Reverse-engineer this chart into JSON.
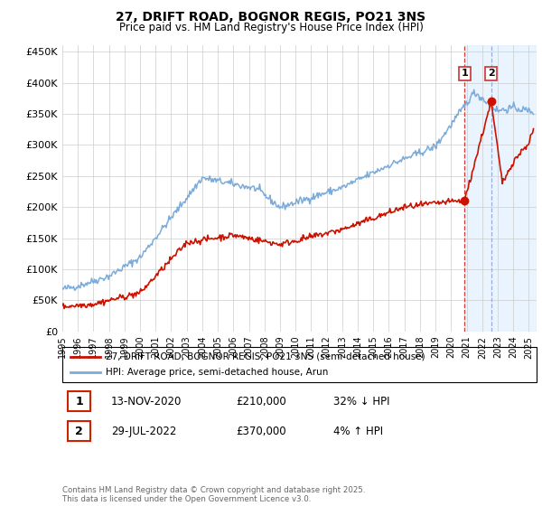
{
  "title": "27, DRIFT ROAD, BOGNOR REGIS, PO21 3NS",
  "subtitle": "Price paid vs. HM Land Registry's House Price Index (HPI)",
  "ylabel_ticks": [
    "£0",
    "£50K",
    "£100K",
    "£150K",
    "£200K",
    "£250K",
    "£300K",
    "£350K",
    "£400K",
    "£450K"
  ],
  "ytick_values": [
    0,
    50000,
    100000,
    150000,
    200000,
    250000,
    300000,
    350000,
    400000,
    450000
  ],
  "ylim": [
    0,
    460000
  ],
  "xlim_start": 1995.0,
  "xlim_end": 2025.5,
  "hpi_color": "#7aabdb",
  "price_color": "#cc1100",
  "marker1_x": 2020.87,
  "marker1_y": 210000,
  "marker2_x": 2022.57,
  "marker2_y": 370000,
  "shade_x1": 2020.87,
  "shade_x2": 2025.5,
  "legend_label_red": "27, DRIFT ROAD, BOGNOR REGIS, PO21 3NS (semi-detached house)",
  "legend_label_blue": "HPI: Average price, semi-detached house, Arun",
  "table_row1": [
    "1",
    "13-NOV-2020",
    "£210,000",
    "32% ↓ HPI"
  ],
  "table_row2": [
    "2",
    "29-JUL-2022",
    "£370,000",
    "4% ↑ HPI"
  ],
  "footer": "Contains HM Land Registry data © Crown copyright and database right 2025.\nThis data is licensed under the Open Government Licence v3.0.",
  "background_color": "#ffffff",
  "grid_color": "#cccccc"
}
